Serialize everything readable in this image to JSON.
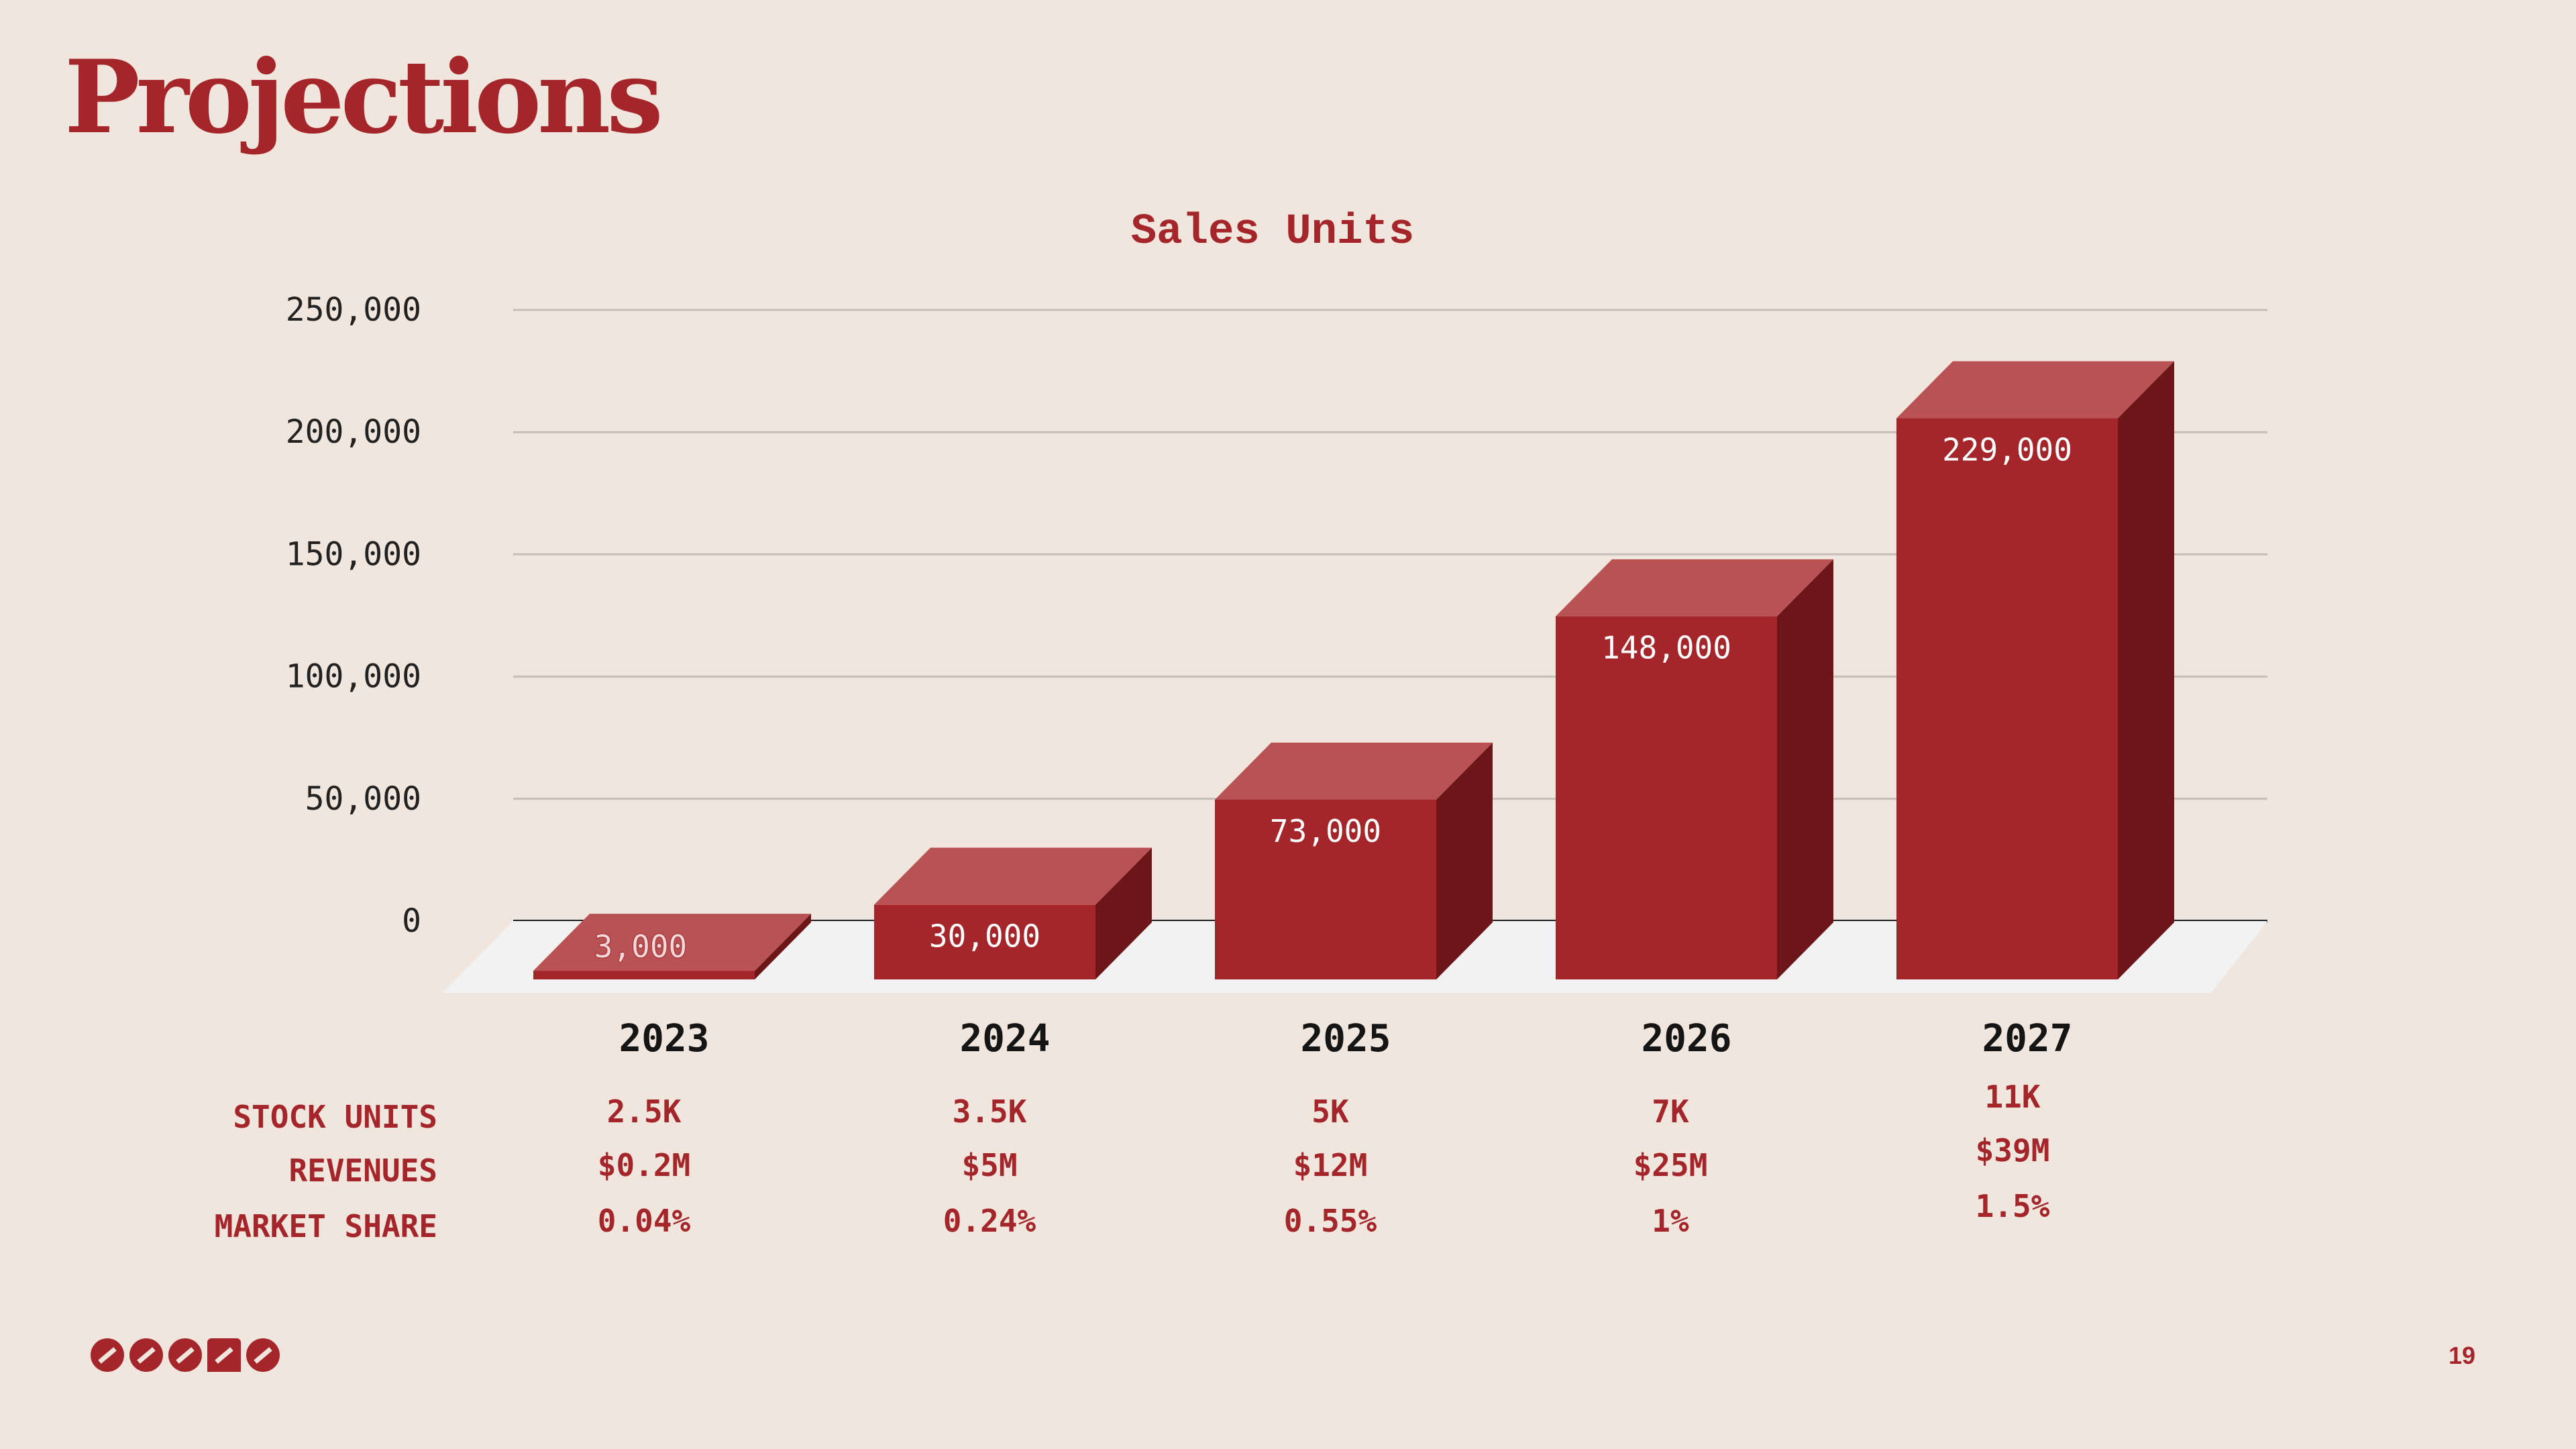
{
  "slide": {
    "title": "Projections",
    "page_number": "19"
  },
  "colors": {
    "background": "#f1e6dd",
    "accent": "#a4262b",
    "bar_front": "#a4262b",
    "bar_top": "#b95255",
    "bar_side": "#6d161a",
    "floor": "#f2f2f2",
    "grid": "#c6beb6"
  },
  "chart_data": {
    "type": "bar",
    "title": "Sales Units",
    "categories": [
      "2023",
      "2024",
      "2025",
      "2026",
      "2027"
    ],
    "values": [
      3000,
      30000,
      73000,
      148000,
      229000
    ],
    "data_labels": [
      "3,000",
      "30,000",
      "73,000",
      "148,000",
      "229,000"
    ],
    "yticks": [
      "0",
      "50,000",
      "100,000",
      "150,000",
      "200,000",
      "250,000"
    ],
    "ylim": [
      0,
      250000
    ],
    "xlabel": "",
    "ylabel": "",
    "grid": true,
    "style": "3d"
  },
  "table": {
    "rows": [
      {
        "label": "STOCK UNITS",
        "values": [
          "2.5K",
          "3.5K",
          "5K",
          "7K",
          "11K"
        ]
      },
      {
        "label": "REVENUES",
        "values": [
          "$0.2M",
          "$5M",
          "$12M",
          "$25M",
          "$39M"
        ]
      },
      {
        "label": "MARKET SHARE",
        "values": [
          "0.04%",
          "0.24%",
          "0.55%",
          "1%",
          "1.5%"
        ]
      }
    ]
  },
  "logo": {
    "icon": "brand-logo-icon"
  }
}
